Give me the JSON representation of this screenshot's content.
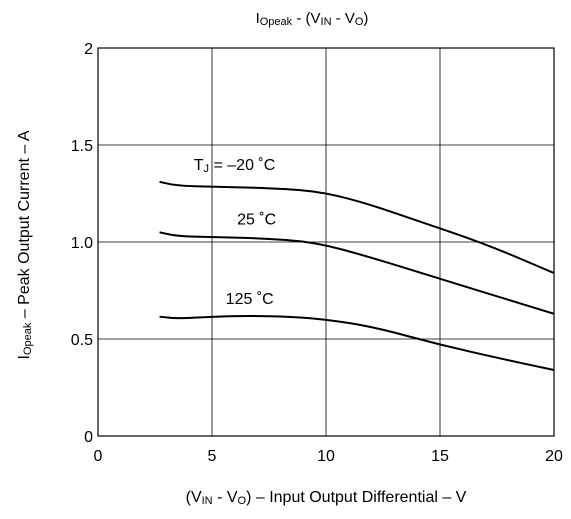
{
  "chart_data": {
    "type": "line",
    "title": {
      "main": "I",
      "main_sub": "Opeak",
      "sep": " - (V",
      "in_sub": "IN",
      "minus": " - V",
      "out_sub": "O",
      "close": ")"
    },
    "xlabel": {
      "open": "(V",
      "in_sub": "IN",
      "minus": " - V",
      "out_sub": "O",
      "rest": ") – Input Output Differential – V"
    },
    "ylabel": {
      "main": "I",
      "sub": "Opeak",
      "rest": " – Peak Output Current – A"
    },
    "xlim": [
      0,
      20
    ],
    "ylim": [
      0,
      2
    ],
    "x_ticks": [
      0,
      5,
      10,
      15,
      20
    ],
    "x_tick_labels": [
      "0",
      "5",
      "10",
      "15",
      "20"
    ],
    "y_ticks": [
      0,
      0.5,
      1.0,
      1.5,
      2
    ],
    "y_tick_labels": [
      "0",
      "0.5",
      "1.0",
      "1.5",
      "2"
    ],
    "grid": true,
    "line_color": "#000000",
    "series": [
      {
        "label_main": "T",
        "label_sub": "J",
        "label_rest": " = –20 ˚C",
        "label_at": [
          4.2,
          1.37
        ],
        "points": [
          [
            2.7,
            1.31
          ],
          [
            3.5,
            1.29
          ],
          [
            5,
            1.285
          ],
          [
            7,
            1.28
          ],
          [
            9.5,
            1.265
          ],
          [
            11.5,
            1.21
          ],
          [
            14,
            1.11
          ],
          [
            17,
            0.99
          ],
          [
            20,
            0.84
          ]
        ]
      },
      {
        "label_main": "",
        "label_sub": "",
        "label_rest": "25 ˚C",
        "label_at": [
          6.1,
          1.09
        ],
        "points": [
          [
            2.7,
            1.05
          ],
          [
            3.5,
            1.03
          ],
          [
            5,
            1.025
          ],
          [
            7,
            1.02
          ],
          [
            9.5,
            1.0
          ],
          [
            12,
            0.92
          ],
          [
            15,
            0.81
          ],
          [
            17.5,
            0.72
          ],
          [
            20,
            0.63
          ]
        ]
      },
      {
        "label_main": "",
        "label_sub": "",
        "label_rest": "125 ˚C",
        "label_at": [
          5.6,
          0.68
        ],
        "points": [
          [
            2.7,
            0.615
          ],
          [
            3.5,
            0.605
          ],
          [
            5,
            0.615
          ],
          [
            6.5,
            0.62
          ],
          [
            8.5,
            0.615
          ],
          [
            10,
            0.6
          ],
          [
            12,
            0.565
          ],
          [
            15,
            0.47
          ],
          [
            18,
            0.39
          ],
          [
            20,
            0.34
          ]
        ]
      }
    ]
  }
}
